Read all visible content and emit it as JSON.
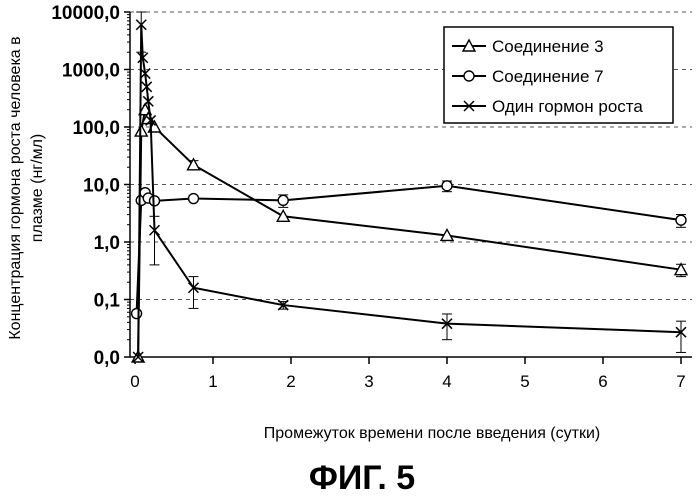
{
  "figure": {
    "caption": "ФИГ. 5"
  },
  "chart_data": {
    "type": "line",
    "title": "",
    "xlabel": "Промежуток времени после введения (сутки)",
    "ylabel": "Концентрация гормона роста человека в плазме (нг/мл)",
    "x_ticks": [
      0,
      1,
      2,
      3,
      4,
      5,
      6,
      7
    ],
    "x_tick_labels": [
      "0",
      "1",
      "2",
      "3",
      "4",
      "5",
      "6",
      "7"
    ],
    "xlim": [
      -0.05,
      7.1
    ],
    "y_scale": "log",
    "y_tick_values": [
      0.01,
      0.1,
      1,
      10,
      100,
      1000,
      10000
    ],
    "y_tick_labels": [
      "0,0",
      "0,1",
      "1,0",
      "10,0",
      "100,0",
      "1000,0",
      "10000,0"
    ],
    "ylim": [
      0.01,
      10000
    ],
    "grid": "horizontal dashed",
    "legend_position": "top-right",
    "series": [
      {
        "name": "Соединение 3",
        "marker": "triangle",
        "x": [
          0.04,
          0.08,
          0.13,
          0.17,
          0.25,
          0.75,
          1.9,
          4,
          7
        ],
        "y": [
          0.01,
          85,
          200,
          140,
          100,
          22,
          2.8,
          1.3,
          0.33
        ],
        "err": [
          0,
          0,
          0,
          0,
          0,
          4,
          0,
          0,
          0.08
        ]
      },
      {
        "name": "Соединение 7",
        "marker": "circle",
        "x": [
          0.02,
          0.08,
          0.13,
          0.17,
          0.25,
          0.75,
          1.9,
          4,
          7
        ],
        "y": [
          0.057,
          5.3,
          7.2,
          5.8,
          5.2,
          5.7,
          5.3,
          9.5,
          2.4
        ],
        "err": [
          0,
          0,
          0,
          0,
          0,
          0,
          1.3,
          2.0,
          0.6
        ]
      },
      {
        "name": "Один гормон роста",
        "marker": "x",
        "x": [
          0.04,
          0.08,
          0.1,
          0.13,
          0.15,
          0.17,
          0.2,
          0.25,
          0.75,
          1.9,
          4,
          7
        ],
        "y": [
          0.01,
          6000,
          1600,
          850,
          500,
          280,
          130,
          1.6,
          0.16,
          0.08,
          0.038,
          0.027
        ],
        "err": [
          0,
          4000,
          0,
          0,
          0,
          0,
          0,
          1.2,
          0.09,
          0.012,
          0.018,
          0.015
        ]
      }
    ]
  }
}
